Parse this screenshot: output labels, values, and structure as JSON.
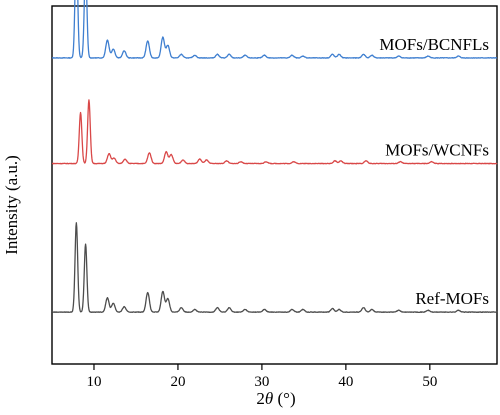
{
  "chart_data": {
    "type": "line",
    "xlabel_prefix": "2",
    "xlabel_symbol": "θ",
    "xlabel_suffix": " (°)",
    "ylabel": "Intensity (a.u.)",
    "xlim": [
      5,
      58
    ],
    "x_ticks": [
      10,
      20,
      30,
      40,
      50
    ],
    "y_ticks_visible": false,
    "grid": false,
    "series": [
      {
        "name": "MOFs/BCNFLs",
        "color": "#3f7fd0",
        "baseline_fraction": 0.855,
        "peaks": [
          [
            7.9,
            125
          ],
          [
            9.0,
            101
          ],
          [
            11.6,
            20
          ],
          [
            12.3,
            10
          ],
          [
            13.6,
            8
          ],
          [
            16.4,
            19
          ],
          [
            18.2,
            23
          ],
          [
            18.8,
            14
          ],
          [
            20.4,
            4
          ],
          [
            22.0,
            3
          ],
          [
            24.7,
            4
          ],
          [
            26.1,
            4
          ],
          [
            28.0,
            3
          ],
          [
            30.3,
            3
          ],
          [
            33.6,
            3
          ],
          [
            34.9,
            2
          ],
          [
            38.4,
            4
          ],
          [
            39.2,
            4
          ],
          [
            42.1,
            4
          ],
          [
            43.1,
            3
          ],
          [
            46.3,
            2
          ],
          [
            49.8,
            2
          ],
          [
            53.4,
            2
          ]
        ]
      },
      {
        "name": "MOFs/WCNFs",
        "color": "#d94848",
        "baseline_fraction": 0.56,
        "peaks": [
          [
            8.4,
            57
          ],
          [
            9.4,
            71
          ],
          [
            11.8,
            11
          ],
          [
            12.4,
            6
          ],
          [
            13.7,
            5
          ],
          [
            16.6,
            12
          ],
          [
            18.6,
            13
          ],
          [
            19.2,
            10
          ],
          [
            20.6,
            4
          ],
          [
            22.6,
            5
          ],
          [
            23.4,
            4
          ],
          [
            25.8,
            3
          ],
          [
            27.5,
            2
          ],
          [
            30.5,
            2
          ],
          [
            33.8,
            2
          ],
          [
            38.7,
            3
          ],
          [
            39.4,
            3
          ],
          [
            42.4,
            3
          ],
          [
            46.5,
            2
          ],
          [
            50.2,
            2
          ]
        ]
      },
      {
        "name": "Ref-MOFs",
        "color": "#4d4d4d",
        "baseline_fraction": 0.145,
        "peaks": [
          [
            7.9,
            100
          ],
          [
            9.0,
            76
          ],
          [
            11.6,
            16
          ],
          [
            12.3,
            10
          ],
          [
            13.6,
            6
          ],
          [
            16.4,
            22
          ],
          [
            18.2,
            23
          ],
          [
            18.8,
            15
          ],
          [
            20.4,
            5
          ],
          [
            22.0,
            3
          ],
          [
            24.7,
            5
          ],
          [
            26.1,
            5
          ],
          [
            28.0,
            3
          ],
          [
            30.3,
            3
          ],
          [
            33.6,
            3
          ],
          [
            34.9,
            3
          ],
          [
            38.4,
            4
          ],
          [
            39.2,
            3
          ],
          [
            42.1,
            5
          ],
          [
            43.1,
            3
          ],
          [
            46.3,
            2
          ],
          [
            49.8,
            2
          ],
          [
            53.4,
            2
          ]
        ]
      }
    ]
  }
}
